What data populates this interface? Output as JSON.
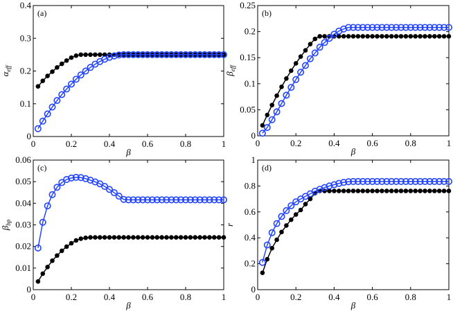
{
  "chart_data": [
    {
      "type": "line",
      "panel_label": "(a)",
      "xlabel": "β",
      "ylabel": "α",
      "ylabel_sub": "eff",
      "xlim": [
        0,
        1
      ],
      "ylim": [
        0,
        0.4
      ],
      "xticks": [
        0,
        0.2,
        0.4,
        0.6,
        0.8,
        1
      ],
      "xtick_labels": [
        "0",
        "0.2",
        "0.4",
        "0.6",
        "0.8",
        "1"
      ],
      "yticks": [
        0,
        0.1,
        0.2,
        0.3,
        0.4
      ],
      "ytick_labels": [
        "0",
        "0.1",
        "0.2",
        "0.3",
        "0.4"
      ],
      "series": [
        {
          "name": "black-asterisk",
          "color": "#000000",
          "marker": "filled",
          "values": [
            0.153,
            0.17,
            0.185,
            0.198,
            0.211,
            0.222,
            0.232,
            0.241,
            0.247,
            0.25,
            0.25,
            0.25,
            0.25,
            0.25,
            0.25,
            0.25,
            0.25,
            0.25,
            0.25,
            0.25,
            0.25,
            0.25,
            0.25,
            0.25,
            0.25,
            0.25,
            0.25,
            0.25,
            0.25,
            0.25,
            0.25,
            0.25,
            0.25,
            0.25,
            0.25,
            0.25,
            0.25,
            0.25,
            0.25,
            0.25
          ]
        },
        {
          "name": "blue-circle",
          "color": "#2244ff",
          "marker": "open",
          "values": [
            0.024,
            0.047,
            0.069,
            0.09,
            0.11,
            0.128,
            0.145,
            0.16,
            0.175,
            0.188,
            0.2,
            0.211,
            0.221,
            0.229,
            0.236,
            0.242,
            0.246,
            0.249,
            0.25,
            0.25,
            0.25,
            0.25,
            0.25,
            0.25,
            0.25,
            0.25,
            0.25,
            0.25,
            0.25,
            0.25,
            0.25,
            0.25,
            0.25,
            0.25,
            0.25,
            0.25,
            0.25,
            0.25,
            0.25,
            0.25
          ]
        }
      ]
    },
    {
      "type": "line",
      "panel_label": "(b)",
      "xlabel": "β",
      "ylabel": "β",
      "ylabel_sub": "eff",
      "xlim": [
        0,
        1
      ],
      "ylim": [
        0,
        0.25
      ],
      "xticks": [
        0,
        0.2,
        0.4,
        0.6,
        0.8,
        1
      ],
      "xtick_labels": [
        "0",
        "0.2",
        "0.4",
        "0.6",
        "0.8",
        "1"
      ],
      "yticks": [
        0,
        0.05,
        0.1,
        0.15,
        0.2,
        0.25
      ],
      "ytick_labels": [
        "0",
        "0.05",
        "0.1",
        "0.15",
        "0.2",
        "0.25"
      ],
      "series": [
        {
          "name": "black-asterisk",
          "color": "#000000",
          "marker": "filled",
          "values": [
            0.02,
            0.04,
            0.059,
            0.077,
            0.094,
            0.11,
            0.125,
            0.139,
            0.152,
            0.164,
            0.176,
            0.186,
            0.191,
            0.191,
            0.191,
            0.191,
            0.191,
            0.191,
            0.191,
            0.191,
            0.191,
            0.191,
            0.191,
            0.191,
            0.191,
            0.191,
            0.191,
            0.191,
            0.191,
            0.191,
            0.191,
            0.191,
            0.191,
            0.191,
            0.191,
            0.191,
            0.191,
            0.191,
            0.191,
            0.191
          ]
        },
        {
          "name": "blue-circle",
          "color": "#2244ff",
          "marker": "open",
          "values": [
            0.005,
            0.016,
            0.031,
            0.046,
            0.062,
            0.078,
            0.093,
            0.108,
            0.122,
            0.135,
            0.148,
            0.159,
            0.17,
            0.179,
            0.187,
            0.195,
            0.201,
            0.205,
            0.208,
            0.208,
            0.208,
            0.208,
            0.208,
            0.208,
            0.208,
            0.208,
            0.208,
            0.208,
            0.208,
            0.208,
            0.208,
            0.208,
            0.208,
            0.208,
            0.208,
            0.208,
            0.208,
            0.208,
            0.208,
            0.208
          ]
        }
      ]
    },
    {
      "type": "line",
      "panel_label": "(c)",
      "xlabel": "β",
      "ylabel": "β",
      "ylabel_sub": "bp",
      "xlim": [
        0,
        1
      ],
      "ylim": [
        0,
        0.06
      ],
      "xticks": [
        0,
        0.2,
        0.4,
        0.6,
        0.8,
        1
      ],
      "xtick_labels": [
        "0",
        "0.2",
        "0.4",
        "0.6",
        "0.8",
        "1"
      ],
      "yticks": [
        0,
        0.01,
        0.02,
        0.03,
        0.04,
        0.05,
        0.06
      ],
      "ytick_labels": [
        "0",
        "0.01",
        "0.02",
        "0.03",
        "0.04",
        "0.05",
        "0.06"
      ],
      "series": [
        {
          "name": "black-asterisk",
          "color": "#000000",
          "marker": "filled",
          "values": [
            0.0038,
            0.0074,
            0.0105,
            0.0134,
            0.0158,
            0.018,
            0.0199,
            0.0215,
            0.0228,
            0.0236,
            0.024,
            0.0242,
            0.0242,
            0.0242,
            0.0242,
            0.0242,
            0.0242,
            0.0242,
            0.0242,
            0.0242,
            0.0242,
            0.0242,
            0.0242,
            0.0242,
            0.0242,
            0.0242,
            0.0242,
            0.0242,
            0.0242,
            0.0242,
            0.0242,
            0.0242,
            0.0242,
            0.0242,
            0.0242,
            0.0242,
            0.0242,
            0.0242,
            0.0242,
            0.0242
          ]
        },
        {
          "name": "blue-circle",
          "color": "#2244ff",
          "marker": "open",
          "values": [
            0.0193,
            0.0312,
            0.0388,
            0.044,
            0.0474,
            0.0496,
            0.051,
            0.0517,
            0.052,
            0.0519,
            0.0514,
            0.0507,
            0.0499,
            0.049,
            0.0478,
            0.0464,
            0.0449,
            0.0433,
            0.0418,
            0.0416,
            0.0416,
            0.0416,
            0.0416,
            0.0416,
            0.0416,
            0.0416,
            0.0416,
            0.0416,
            0.0416,
            0.0416,
            0.0416,
            0.0416,
            0.0416,
            0.0416,
            0.0416,
            0.0416,
            0.0416,
            0.0416,
            0.0416,
            0.0416
          ]
        }
      ]
    },
    {
      "type": "line",
      "panel_label": "(d)",
      "xlabel": "β",
      "ylabel": "r",
      "ylabel_sub": "",
      "xlim": [
        0,
        1
      ],
      "ylim": [
        0,
        1
      ],
      "xticks": [
        0,
        0.2,
        0.4,
        0.6,
        0.8,
        1
      ],
      "xtick_labels": [
        "0",
        "0.2",
        "0.4",
        "0.6",
        "0.8",
        "1"
      ],
      "yticks": [
        0,
        0.2,
        0.4,
        0.6,
        0.8,
        1
      ],
      "ytick_labels": [
        "0",
        "0.2",
        "0.4",
        "0.6",
        "0.8",
        "1"
      ],
      "series": [
        {
          "name": "black-asterisk",
          "color": "#000000",
          "marker": "filled",
          "values": [
            0.13,
            0.235,
            0.32,
            0.385,
            0.445,
            0.495,
            0.54,
            0.58,
            0.615,
            0.66,
            0.7,
            0.745,
            0.762,
            0.762,
            0.762,
            0.762,
            0.762,
            0.762,
            0.762,
            0.762,
            0.762,
            0.762,
            0.762,
            0.762,
            0.762,
            0.762,
            0.762,
            0.762,
            0.762,
            0.762,
            0.762,
            0.762,
            0.762,
            0.762,
            0.762,
            0.762,
            0.762,
            0.762,
            0.762,
            0.762
          ]
        },
        {
          "name": "blue-circle",
          "color": "#2244ff",
          "marker": "open",
          "values": [
            0.21,
            0.345,
            0.44,
            0.51,
            0.565,
            0.61,
            0.648,
            0.678,
            0.7,
            0.72,
            0.74,
            0.76,
            0.775,
            0.788,
            0.8,
            0.81,
            0.82,
            0.828,
            0.833,
            0.835,
            0.835,
            0.835,
            0.835,
            0.835,
            0.835,
            0.835,
            0.835,
            0.835,
            0.835,
            0.835,
            0.835,
            0.835,
            0.835,
            0.835,
            0.835,
            0.835,
            0.835,
            0.835,
            0.835,
            0.835
          ]
        }
      ]
    }
  ],
  "x_values": {
    "start": 0.025,
    "step": 0.025,
    "count": 40
  }
}
